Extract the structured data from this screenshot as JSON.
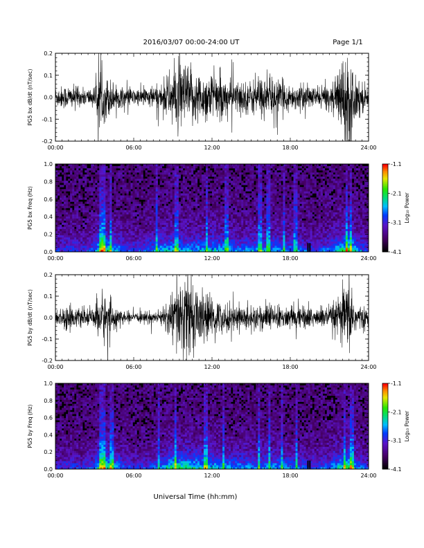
{
  "header": {
    "title": "2016/03/07  00:00-24:00 UT",
    "page": "Page 1/1"
  },
  "footer": {
    "xlabel": "Universal Time (hh:mm)"
  },
  "chart_data": [
    {
      "type": "line",
      "ylabel": "PG5 bx dB/dt (nT/sec)",
      "xlim": [
        0,
        24
      ],
      "ylim": [
        -0.2,
        0.2
      ],
      "x_ticks": [
        "00:00",
        "06:00",
        "12:00",
        "18:00",
        "24:00"
      ],
      "y_ticks": [
        "-0.2",
        "-0.1",
        "0.0",
        "0.1",
        "0.2"
      ],
      "amplitude_envelope": {
        "x": [
          0,
          1,
          2,
          3,
          3.3,
          3.5,
          4,
          4.5,
          5,
          6,
          7,
          8,
          9,
          9.5,
          10,
          11,
          12,
          13,
          14,
          15,
          16,
          17,
          18,
          19,
          20,
          21,
          21.5,
          22,
          22.5,
          23,
          24
        ],
        "y": [
          0.05,
          0.06,
          0.04,
          0.05,
          0.14,
          0.12,
          0.1,
          0.07,
          0.05,
          0.04,
          0.05,
          0.06,
          0.14,
          0.18,
          0.16,
          0.12,
          0.12,
          0.09,
          0.08,
          0.08,
          0.1,
          0.09,
          0.06,
          0.06,
          0.05,
          0.06,
          0.08,
          0.22,
          0.2,
          0.12,
          0.04
        ]
      }
    },
    {
      "type": "heatmap",
      "ylabel": "PG5 bx Freq (Hz)",
      "xlim": [
        0,
        24
      ],
      "ylim": [
        0,
        1.0
      ],
      "x_ticks": [
        "00:00",
        "06:00",
        "12:00",
        "18:00",
        "24:00"
      ],
      "y_ticks": [
        "0.0",
        "0.2",
        "0.4",
        "0.6",
        "0.8",
        "1.0"
      ],
      "colorbar": {
        "label": "Log₁₀ Power",
        "ticks": [
          "-1.1",
          "-2.1",
          "-3.1",
          "-4.1"
        ],
        "range": [
          -4.1,
          -1.1
        ]
      },
      "activity_x": [
        0,
        1,
        2,
        3,
        3.5,
        4,
        5,
        6,
        7,
        8,
        9,
        10,
        11,
        12,
        13,
        14,
        15,
        16,
        17,
        18,
        19,
        20,
        21,
        22,
        22.5,
        23,
        24
      ],
      "activity_level": [
        0.3,
        0.35,
        0.3,
        0.4,
        0.9,
        0.7,
        0.5,
        0.35,
        0.4,
        0.55,
        0.6,
        0.55,
        0.55,
        0.6,
        0.55,
        0.5,
        0.5,
        0.55,
        0.55,
        0.45,
        0.4,
        0.35,
        0.45,
        0.75,
        0.95,
        0.6,
        0.3
      ],
      "spikes_hours": [
        3.5,
        3.7,
        4.2,
        7.8,
        9.3,
        11.6,
        13.1,
        15.7,
        16.3,
        17.5,
        18.4,
        22.3,
        22.6
      ]
    },
    {
      "type": "line",
      "ylabel": "PG5 by dB/dt (nT/sec)",
      "xlim": [
        0,
        24
      ],
      "ylim": [
        -0.2,
        0.2
      ],
      "x_ticks": [
        "00:00",
        "06:00",
        "12:00",
        "18:00",
        "24:00"
      ],
      "y_ticks": [
        "-0.2",
        "-0.1",
        "0.0",
        "0.1",
        "0.2"
      ],
      "amplitude_envelope": {
        "x": [
          0,
          1,
          2,
          3,
          3.3,
          3.5,
          4,
          4.5,
          5,
          6,
          7,
          8,
          9,
          9.5,
          10,
          11,
          12,
          13,
          14,
          15,
          16,
          17,
          18,
          19,
          20,
          21,
          21.5,
          22,
          22.5,
          23,
          24
        ],
        "y": [
          0.04,
          0.06,
          0.04,
          0.04,
          0.12,
          0.14,
          0.1,
          0.07,
          0.03,
          0.02,
          0.03,
          0.03,
          0.12,
          0.2,
          0.22,
          0.14,
          0.1,
          0.07,
          0.06,
          0.06,
          0.07,
          0.06,
          0.05,
          0.06,
          0.05,
          0.06,
          0.08,
          0.15,
          0.18,
          0.08,
          0.03
        ]
      }
    },
    {
      "type": "heatmap",
      "ylabel": "PG5 by Freq (Hz)",
      "xlim": [
        0,
        24
      ],
      "ylim": [
        0,
        1.0
      ],
      "x_ticks": [
        "00:00",
        "06:00",
        "12:00",
        "18:00",
        "24:00"
      ],
      "y_ticks": [
        "0.0",
        "0.2",
        "0.4",
        "0.6",
        "0.8",
        "1.0"
      ],
      "colorbar": {
        "label": "Log₁₀ Power",
        "ticks": [
          "-1.1",
          "-2.1",
          "-3.1",
          "-4.1"
        ],
        "range": [
          -4.1,
          -1.1
        ]
      },
      "activity_x": [
        0,
        1,
        2,
        3,
        3.5,
        4,
        5,
        6,
        7,
        8,
        9,
        10,
        11,
        12,
        13,
        14,
        15,
        16,
        17,
        18,
        19,
        20,
        21,
        22,
        22.5,
        23,
        24
      ],
      "activity_level": [
        0.3,
        0.35,
        0.3,
        0.4,
        0.85,
        0.75,
        0.45,
        0.3,
        0.35,
        0.45,
        0.8,
        0.75,
        0.65,
        0.6,
        0.55,
        0.5,
        0.5,
        0.5,
        0.55,
        0.45,
        0.4,
        0.35,
        0.45,
        0.7,
        0.9,
        0.55,
        0.3
      ],
      "spikes_hours": [
        3.5,
        3.8,
        4.3,
        7.9,
        9.2,
        11.5,
        12.9,
        15.6,
        16.4,
        17.4,
        18.5,
        22.2,
        22.7
      ]
    }
  ]
}
